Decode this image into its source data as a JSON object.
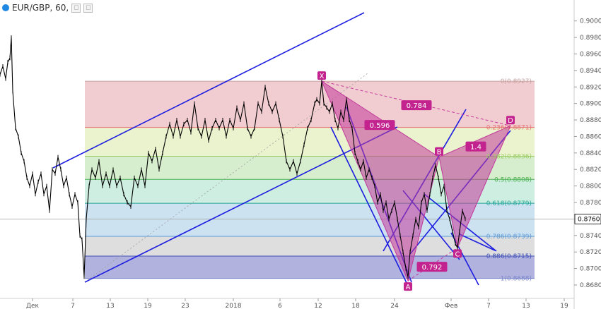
{
  "header": {
    "symbol": "EUR/GBP, 60,"
  },
  "colors": {
    "price_line": "#000000",
    "channel": "#1d1de0",
    "pattern_fill": "#c2389a",
    "pattern_label_bg": "#c2238f",
    "price_tag_bg": "#ffffff"
  },
  "chart_data": {
    "type": "line",
    "title": "EUR/GBP, 60,",
    "symbol": "EUR/GBP",
    "timeframe": "60",
    "x_axis_labels": [
      "Дек",
      "7",
      "13",
      "19",
      "23",
      "2018",
      "6",
      "12",
      "18",
      "24",
      "Фев",
      "7",
      "13",
      "19"
    ],
    "ylim": [
      0.8668,
      0.901
    ],
    "y_ticks": [
      0.868,
      0.87,
      0.872,
      0.874,
      0.876,
      0.878,
      0.88,
      0.882,
      0.884,
      0.886,
      0.888,
      0.89,
      0.892,
      0.894,
      0.896,
      0.898,
      0.9
    ],
    "y_tick_labels": [
      "0.8680",
      "0.8700",
      "0.8720",
      "0.8740",
      "0.8760",
      "0.8780",
      "0.8800",
      "0.8820",
      "0.8840",
      "0.8860",
      "0.8880",
      "0.8900",
      "0.8920",
      "0.8940",
      "0.8960",
      "0.8980",
      "0.9000"
    ],
    "current_price": 0.876,
    "current_price_label": "0.8760",
    "price_series": [
      [
        0,
        0.8935
      ],
      [
        4,
        0.8945
      ],
      [
        8,
        0.893
      ],
      [
        11,
        0.895
      ],
      [
        14,
        0.8955
      ],
      [
        16,
        0.898
      ],
      [
        18,
        0.8915
      ],
      [
        22,
        0.887
      ],
      [
        26,
        0.886
      ],
      [
        30,
        0.884
      ],
      [
        34,
        0.883
      ],
      [
        38,
        0.881
      ],
      [
        42,
        0.88
      ],
      [
        46,
        0.8815
      ],
      [
        50,
        0.879
      ],
      [
        54,
        0.8805
      ],
      [
        58,
        0.8815
      ],
      [
        62,
        0.879
      ],
      [
        66,
        0.88
      ],
      [
        70,
        0.877
      ],
      [
        74,
        0.882
      ],
      [
        78,
        0.8815
      ],
      [
        82,
        0.8835
      ],
      [
        86,
        0.882
      ],
      [
        90,
        0.88
      ],
      [
        94,
        0.881
      ],
      [
        98,
        0.879
      ],
      [
        102,
        0.8775
      ],
      [
        106,
        0.879
      ],
      [
        110,
        0.878
      ],
      [
        113,
        0.874
      ],
      [
        116,
        0.8735
      ],
      [
        119,
        0.869
      ],
      [
        122,
        0.876
      ],
      [
        126,
        0.88
      ],
      [
        130,
        0.882
      ],
      [
        135,
        0.881
      ],
      [
        140,
        0.883
      ],
      [
        145,
        0.88
      ],
      [
        150,
        0.8815
      ],
      [
        155,
        0.88
      ],
      [
        160,
        0.882
      ],
      [
        165,
        0.88
      ],
      [
        170,
        0.881
      ],
      [
        175,
        0.879
      ],
      [
        180,
        0.878
      ],
      [
        185,
        0.8775
      ],
      [
        190,
        0.881
      ],
      [
        195,
        0.88
      ],
      [
        200,
        0.882
      ],
      [
        205,
        0.88
      ],
      [
        210,
        0.884
      ],
      [
        215,
        0.883
      ],
      [
        220,
        0.8845
      ],
      [
        225,
        0.882
      ],
      [
        230,
        0.884
      ],
      [
        235,
        0.886
      ],
      [
        240,
        0.8875
      ],
      [
        245,
        0.886
      ],
      [
        250,
        0.888
      ],
      [
        255,
        0.886
      ],
      [
        260,
        0.8875
      ],
      [
        265,
        0.888
      ],
      [
        270,
        0.8865
      ],
      [
        275,
        0.89
      ],
      [
        280,
        0.887
      ],
      [
        285,
        0.886
      ],
      [
        290,
        0.888
      ],
      [
        295,
        0.8855
      ],
      [
        300,
        0.887
      ],
      [
        305,
        0.888
      ],
      [
        310,
        0.887
      ],
      [
        315,
        0.888
      ],
      [
        320,
        0.886
      ],
      [
        325,
        0.888
      ],
      [
        330,
        0.887
      ],
      [
        335,
        0.8895
      ],
      [
        340,
        0.888
      ],
      [
        345,
        0.89
      ],
      [
        350,
        0.887
      ],
      [
        355,
        0.886
      ],
      [
        360,
        0.887
      ],
      [
        365,
        0.89
      ],
      [
        370,
        0.889
      ],
      [
        375,
        0.892
      ],
      [
        380,
        0.89
      ],
      [
        385,
        0.889
      ],
      [
        390,
        0.89
      ],
      [
        395,
        0.888
      ],
      [
        400,
        0.886
      ],
      [
        405,
        0.883
      ],
      [
        410,
        0.882
      ],
      [
        415,
        0.883
      ],
      [
        420,
        0.8815
      ],
      [
        425,
        0.883
      ],
      [
        430,
        0.885
      ],
      [
        435,
        0.887
      ],
      [
        440,
        0.888
      ],
      [
        445,
        0.89
      ],
      [
        448,
        0.8905
      ],
      [
        452,
        0.89
      ],
      [
        455,
        0.8927
      ],
      [
        458,
        0.89
      ],
      [
        462,
        0.8895
      ],
      [
        466,
        0.889
      ],
      [
        470,
        0.89
      ],
      [
        474,
        0.888
      ],
      [
        478,
        0.887
      ],
      [
        482,
        0.889
      ],
      [
        486,
        0.888
      ],
      [
        490,
        0.8905
      ],
      [
        494,
        0.888
      ],
      [
        498,
        0.887
      ],
      [
        502,
        0.884
      ],
      [
        506,
        0.883
      ],
      [
        510,
        0.882
      ],
      [
        514,
        0.883
      ],
      [
        518,
        0.881
      ],
      [
        522,
        0.882
      ],
      [
        526,
        0.881
      ],
      [
        530,
        0.88
      ],
      [
        534,
        0.878
      ],
      [
        538,
        0.879
      ],
      [
        542,
        0.877
      ],
      [
        546,
        0.878
      ],
      [
        550,
        0.876
      ],
      [
        554,
        0.877
      ],
      [
        558,
        0.878
      ],
      [
        562,
        0.876
      ],
      [
        566,
        0.874
      ],
      [
        570,
        0.872
      ],
      [
        574,
        0.87
      ],
      [
        577,
        0.869
      ],
      [
        580,
        0.872
      ],
      [
        584,
        0.874
      ],
      [
        588,
        0.876
      ],
      [
        592,
        0.875
      ],
      [
        596,
        0.878
      ],
      [
        600,
        0.879
      ],
      [
        604,
        0.877
      ],
      [
        608,
        0.879
      ],
      [
        612,
        0.881
      ],
      [
        616,
        0.8825
      ],
      [
        620,
        0.881
      ],
      [
        624,
        0.879
      ],
      [
        628,
        0.88
      ],
      [
        632,
        0.877
      ],
      [
        636,
        0.876
      ],
      [
        640,
        0.8745
      ],
      [
        644,
        0.873
      ],
      [
        647,
        0.8725
      ],
      [
        650,
        0.8745
      ],
      [
        654,
        0.877
      ],
      [
        658,
        0.876
      ]
    ],
    "fibonacci": [
      {
        "ratio": "0",
        "price": 0.8927,
        "label": "0(0.8927)",
        "color": "#c8a0a0",
        "fill": "#f0c8cc"
      },
      {
        "ratio": "0.236",
        "price": 0.8871,
        "label": "0.236(0.8871)",
        "color": "#e57373",
        "fill": "#e8f2c8"
      },
      {
        "ratio": "0.382",
        "price": 0.8836,
        "label": "0.382(0.8836)",
        "color": "#9ccc65",
        "fill": "#d2ecc8"
      },
      {
        "ratio": "0.5",
        "price": 0.8808,
        "label": "0.5(0.8808)",
        "color": "#4caf50",
        "fill": "#c8ecde"
      },
      {
        "ratio": "0.618",
        "price": 0.8779,
        "label": "0.618(0.8779)",
        "color": "#26a69a",
        "fill": "#c8dff0"
      },
      {
        "ratio": "0.786",
        "price": 0.8739,
        "label": "0.786(0.8739)",
        "color": "#5c9ad6",
        "fill": "#dadada"
      },
      {
        "ratio": "0.886",
        "price": 0.8715,
        "label": "0.886(0.8715)",
        "color": "#3f51b5",
        "fill": "#aaaadb"
      },
      {
        "ratio": "1",
        "price": 0.8688,
        "label": "1(0.8688)",
        "color": "#7986cb",
        "fill": null
      }
    ],
    "harmonic_pattern": {
      "points": [
        {
          "name": "X",
          "x": 455,
          "price": 0.8927
        },
        {
          "name": "A",
          "x": 577,
          "price": 0.8685
        },
        {
          "name": "B",
          "x": 621,
          "price": 0.8835
        },
        {
          "name": "C",
          "x": 647,
          "price": 0.8725
        },
        {
          "name": "D",
          "x": 722,
          "price": 0.8873
        }
      ],
      "ratios": [
        {
          "label": "0.596",
          "between": "XA-B"
        },
        {
          "label": "0.784",
          "between": "XA-D"
        },
        {
          "label": "0.792",
          "between": "AB-C"
        },
        {
          "label": "1.4",
          "between": "BC-D"
        }
      ]
    }
  }
}
